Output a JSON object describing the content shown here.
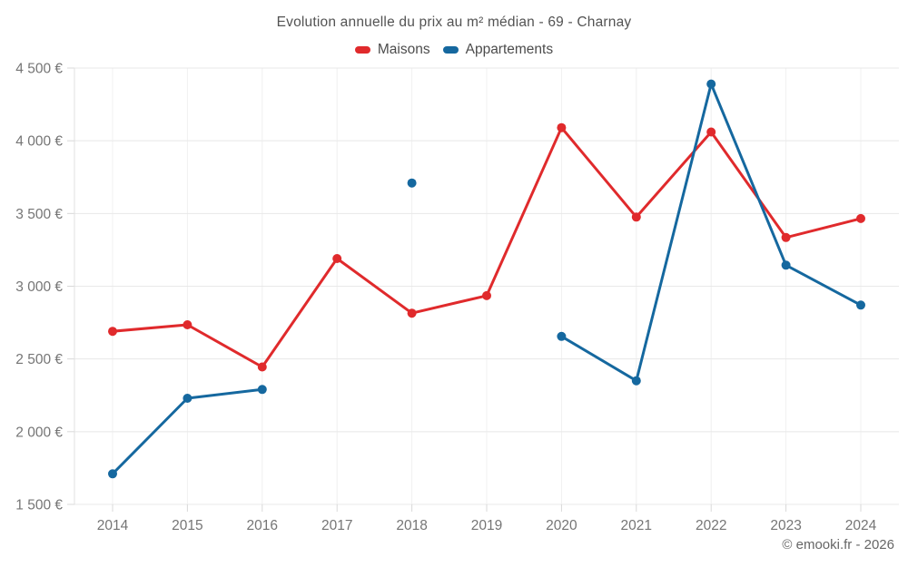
{
  "header": {
    "title": "Evolution annuelle du prix au m² médian - 69 - Charnay"
  },
  "legend": {
    "items": [
      {
        "label": "Maisons",
        "color": "#e02a2c"
      },
      {
        "label": "Appartements",
        "color": "#15689f"
      }
    ]
  },
  "footer": {
    "credit": "© emooki.fr - 2026"
  },
  "chart_data": {
    "type": "line",
    "title": "Evolution annuelle du prix au m² médian - 69 - Charnay",
    "categories": [
      "2014",
      "2015",
      "2016",
      "2017",
      "2018",
      "2019",
      "2020",
      "2021",
      "2022",
      "2023",
      "2024"
    ],
    "series": [
      {
        "name": "Maisons",
        "color": "#e02a2c",
        "values": [
          2690,
          2735,
          2445,
          3190,
          2815,
          2935,
          4090,
          3475,
          4060,
          3335,
          3465
        ]
      },
      {
        "name": "Appartements",
        "color": "#15689f",
        "values": [
          1710,
          2230,
          2290,
          null,
          3710,
          null,
          2655,
          2350,
          4390,
          3145,
          2870
        ]
      }
    ],
    "xlabel": "",
    "ylabel": "",
    "ylim": [
      1500,
      4500
    ],
    "ytick_step": 500,
    "ytick_labels": [
      "1 500 €",
      "2 000 €",
      "2 500 €",
      "3 000 €",
      "3 500 €",
      "4 000 €",
      "4 500 €"
    ],
    "currency": "€",
    "grid": true,
    "legend_position": "top",
    "marker_radius": 5,
    "line_width": 3,
    "colors": {
      "grid_horizontal": "#e8e8e8",
      "grid_vertical": "#f0f0f0",
      "axis_line": "#e0e0e0",
      "tick_mark": "#d8d8d8",
      "tick_label": "#757575",
      "title_text": "#535353",
      "legend_text": "#4c4c4c",
      "footer_text": "#666666",
      "background": "#ffffff"
    }
  }
}
